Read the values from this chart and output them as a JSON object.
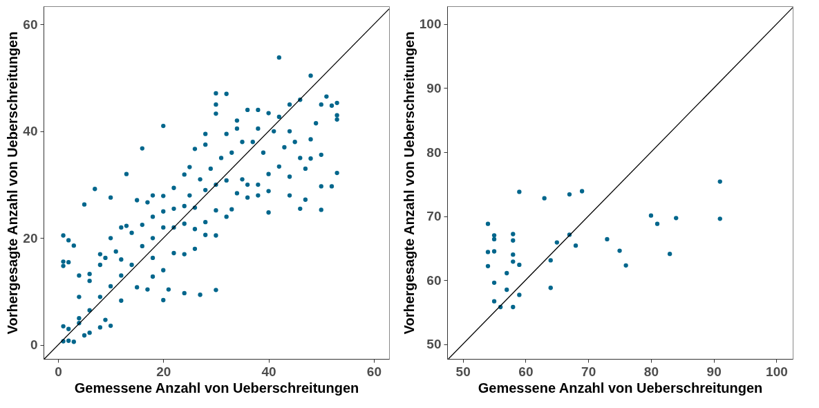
{
  "chart_data": [
    {
      "type": "scatter",
      "xlabel": "Gemessene Anzahl von Ueberschreitungen",
      "ylabel": "Vorhergesagte Anzahl von Ueberschreitungen",
      "xlim": [
        -2.75,
        62.9
      ],
      "ylim": [
        -2.6,
        63.4
      ],
      "xticks": [
        0,
        20,
        40,
        60
      ],
      "yticks": [
        0,
        20,
        40,
        60
      ],
      "grid": false,
      "marker": "circle",
      "series": [
        {
          "color": "#00668c",
          "x": [
            42,
            48,
            30,
            32,
            20,
            16,
            5,
            7,
            10,
            1,
            2,
            3,
            13,
            51,
            53,
            52,
            53,
            53,
            50,
            46,
            44,
            38,
            34,
            30,
            52,
            53,
            50,
            46,
            44,
            47,
            50,
            40,
            38,
            36,
            34,
            30,
            26,
            24,
            33,
            28,
            30,
            22,
            18,
            21,
            20,
            24,
            27,
            30,
            17,
            15,
            12,
            10,
            9,
            6,
            3,
            2,
            1,
            1,
            4,
            8,
            5,
            1,
            1,
            2,
            4,
            6,
            8,
            9,
            11,
            12,
            13,
            15,
            17,
            18,
            20,
            22,
            24,
            25,
            26,
            28,
            28,
            30,
            32,
            34,
            36,
            38,
            40,
            42,
            44,
            45,
            48,
            49,
            50,
            46,
            42,
            40,
            38,
            35,
            32,
            30,
            28,
            26,
            24,
            22,
            20,
            18,
            16,
            14,
            12,
            10,
            8,
            6,
            4,
            2,
            14,
            16,
            18,
            20,
            22,
            25,
            27,
            29,
            31,
            33,
            35,
            37,
            39,
            41,
            43,
            47,
            10,
            8,
            6,
            4,
            12,
            18,
            20,
            24,
            26,
            28,
            32,
            36,
            40,
            44,
            48
          ],
          "values": [
            53.8,
            50.4,
            47.1,
            47,
            41,
            36.8,
            26.3,
            29.2,
            27.6,
            20.5,
            19.6,
            18.6,
            32,
            46.5,
            45.3,
            44.8,
            43,
            42.2,
            45,
            45.9,
            45,
            44,
            42,
            45,
            29.7,
            32.2,
            25.3,
            25.5,
            28,
            27.2,
            29.7,
            24.8,
            28,
            27.6,
            28.4,
            25.2,
            21.7,
            22.7,
            25.4,
            20.6,
            20.5,
            17.2,
            16.3,
            10.4,
            8.4,
            9.7,
            9.4,
            10.3,
            10.4,
            10.8,
            8.3,
            3.6,
            4.7,
            2.3,
            0.6,
            0.8,
            0.7,
            3.5,
            4.1,
            3.3,
            1.8,
            15.6,
            14.8,
            15.5,
            13,
            13.3,
            17,
            16.3,
            17.5,
            22,
            22.3,
            27.1,
            26.7,
            28,
            27.9,
            29.4,
            31.9,
            33.3,
            36.7,
            37.5,
            39.5,
            43.3,
            39.5,
            40.5,
            44,
            40.5,
            43.4,
            42.7,
            40,
            38,
            38.5,
            41.5,
            35.6,
            35,
            33.4,
            32,
            30,
            31,
            30.8,
            30,
            29,
            25.7,
            26,
            25.5,
            22,
            20,
            18.5,
            15,
            13,
            11,
            9,
            6.5,
            5,
            3,
            21,
            22.5,
            24,
            25,
            22,
            28,
            31,
            33,
            35,
            36,
            38,
            38,
            36,
            40,
            37,
            33,
            20,
            15,
            12,
            9,
            16,
            12.8,
            14,
            17,
            18,
            23,
            24,
            30,
            28.8,
            31.5,
            34.9
          ]
        },
        {
          "type": "line",
          "marker": "none",
          "color": "#000000",
          "x": [
            -2.6,
            62.9
          ],
          "values": [
            -2.6,
            62.9
          ]
        }
      ]
    },
    {
      "type": "scatter",
      "xlabel": "Gemessene Anzahl von Ueberschreitungen",
      "ylabel": "Vorhergesagte Anzahl von Ueberschreitungen",
      "xlim": [
        47.5,
        102.6
      ],
      "ylim": [
        47.7,
        102.8
      ],
      "xticks": [
        50,
        60,
        70,
        80,
        90,
        100
      ],
      "yticks": [
        50,
        60,
        70,
        80,
        90,
        100
      ],
      "grid": false,
      "marker": "circle",
      "series": [
        {
          "color": "#00668c",
          "x": [
            54,
            54,
            54,
            55,
            55,
            55,
            55,
            55,
            56,
            57,
            57,
            58,
            58,
            58,
            58,
            58,
            59,
            59,
            59,
            63,
            64,
            64,
            65,
            67,
            67,
            68,
            69,
            73,
            75,
            76,
            80,
            81,
            83,
            84,
            91,
            91
          ],
          "values": [
            68.8,
            64.4,
            62.2,
            67,
            66.4,
            64.5,
            59.6,
            56.7,
            55.8,
            61.1,
            58.5,
            67.2,
            66.2,
            64,
            62.9,
            55.8,
            73.8,
            62.4,
            57.7,
            72.8,
            63.1,
            58.8,
            65.9,
            73.4,
            67.1,
            65.4,
            73.9,
            66.4,
            64.6,
            62.3,
            70.1,
            68.8,
            64.1,
            69.7,
            75.4,
            69.6
          ]
        },
        {
          "type": "line",
          "marker": "none",
          "color": "#000000",
          "x": [
            47.7,
            102.6
          ],
          "values": [
            47.7,
            102.6
          ]
        }
      ]
    }
  ]
}
